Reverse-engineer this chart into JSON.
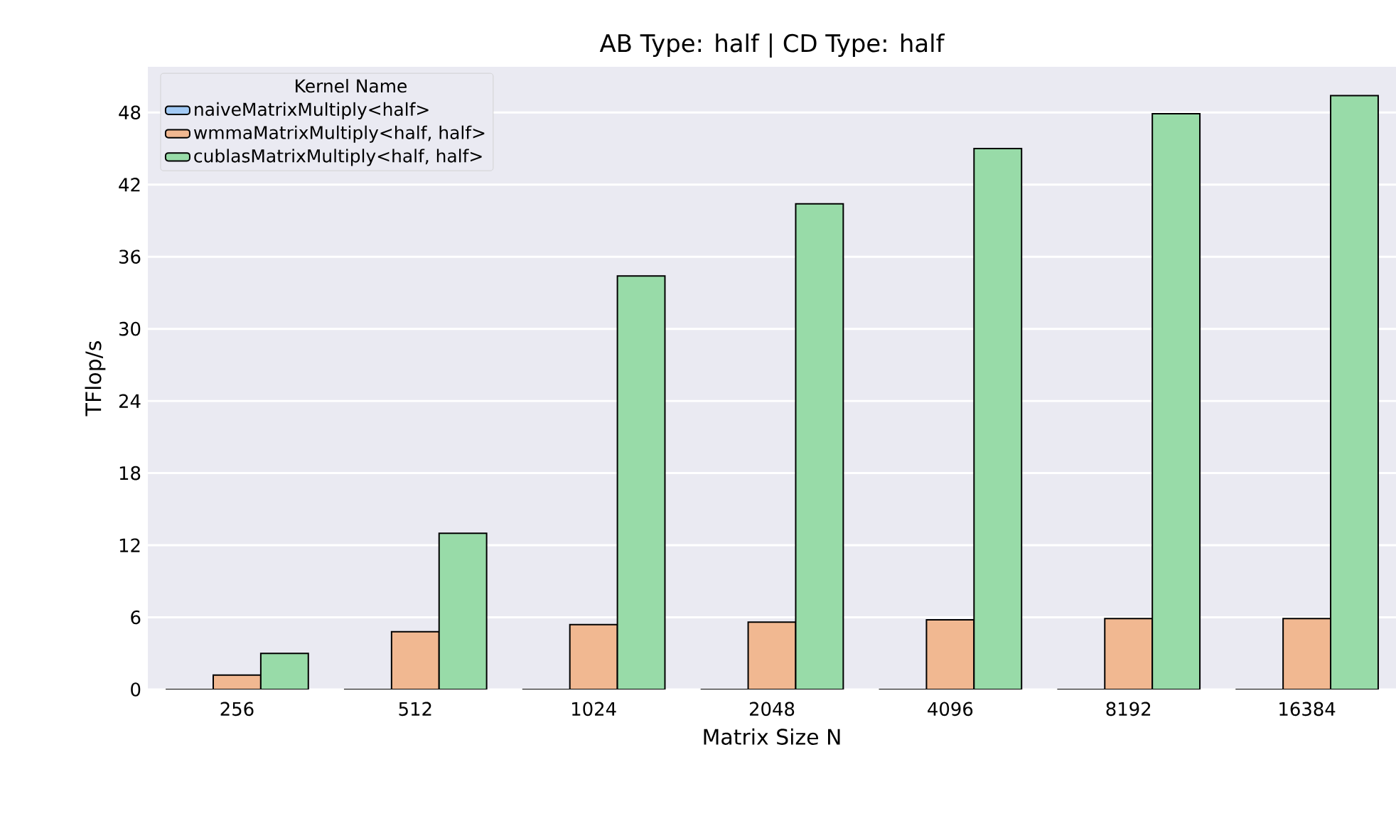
{
  "chart_data": {
    "type": "bar",
    "title": "AB Type: half | CD Type: half",
    "xlabel": "Matrix Size N",
    "ylabel": "TFlop/s",
    "legend_title": "Kernel Name",
    "categories": [
      "256",
      "512",
      "1024",
      "2048",
      "4096",
      "8192",
      "16384"
    ],
    "series": [
      {
        "name": "naiveMatrixMultiply<half>",
        "color": "#a1c9f4",
        "values": [
          0,
          0,
          0,
          0,
          0,
          0,
          0
        ]
      },
      {
        "name": "wmmaMatrixMultiply<half, half>",
        "color": "#f1b891",
        "values": [
          1.2,
          4.8,
          5.4,
          5.6,
          5.8,
          5.9,
          5.9
        ]
      },
      {
        "name": "cublasMatrixMultiply<half, half>",
        "color": "#98dba8",
        "values": [
          3.0,
          13.0,
          34.4,
          40.4,
          45.0,
          47.9,
          49.4
        ]
      }
    ],
    "ylim": [
      0,
      51.8
    ],
    "yticks": [
      0,
      6,
      12,
      18,
      24,
      30,
      36,
      42,
      48
    ],
    "grid": "y",
    "legend": "top left"
  }
}
